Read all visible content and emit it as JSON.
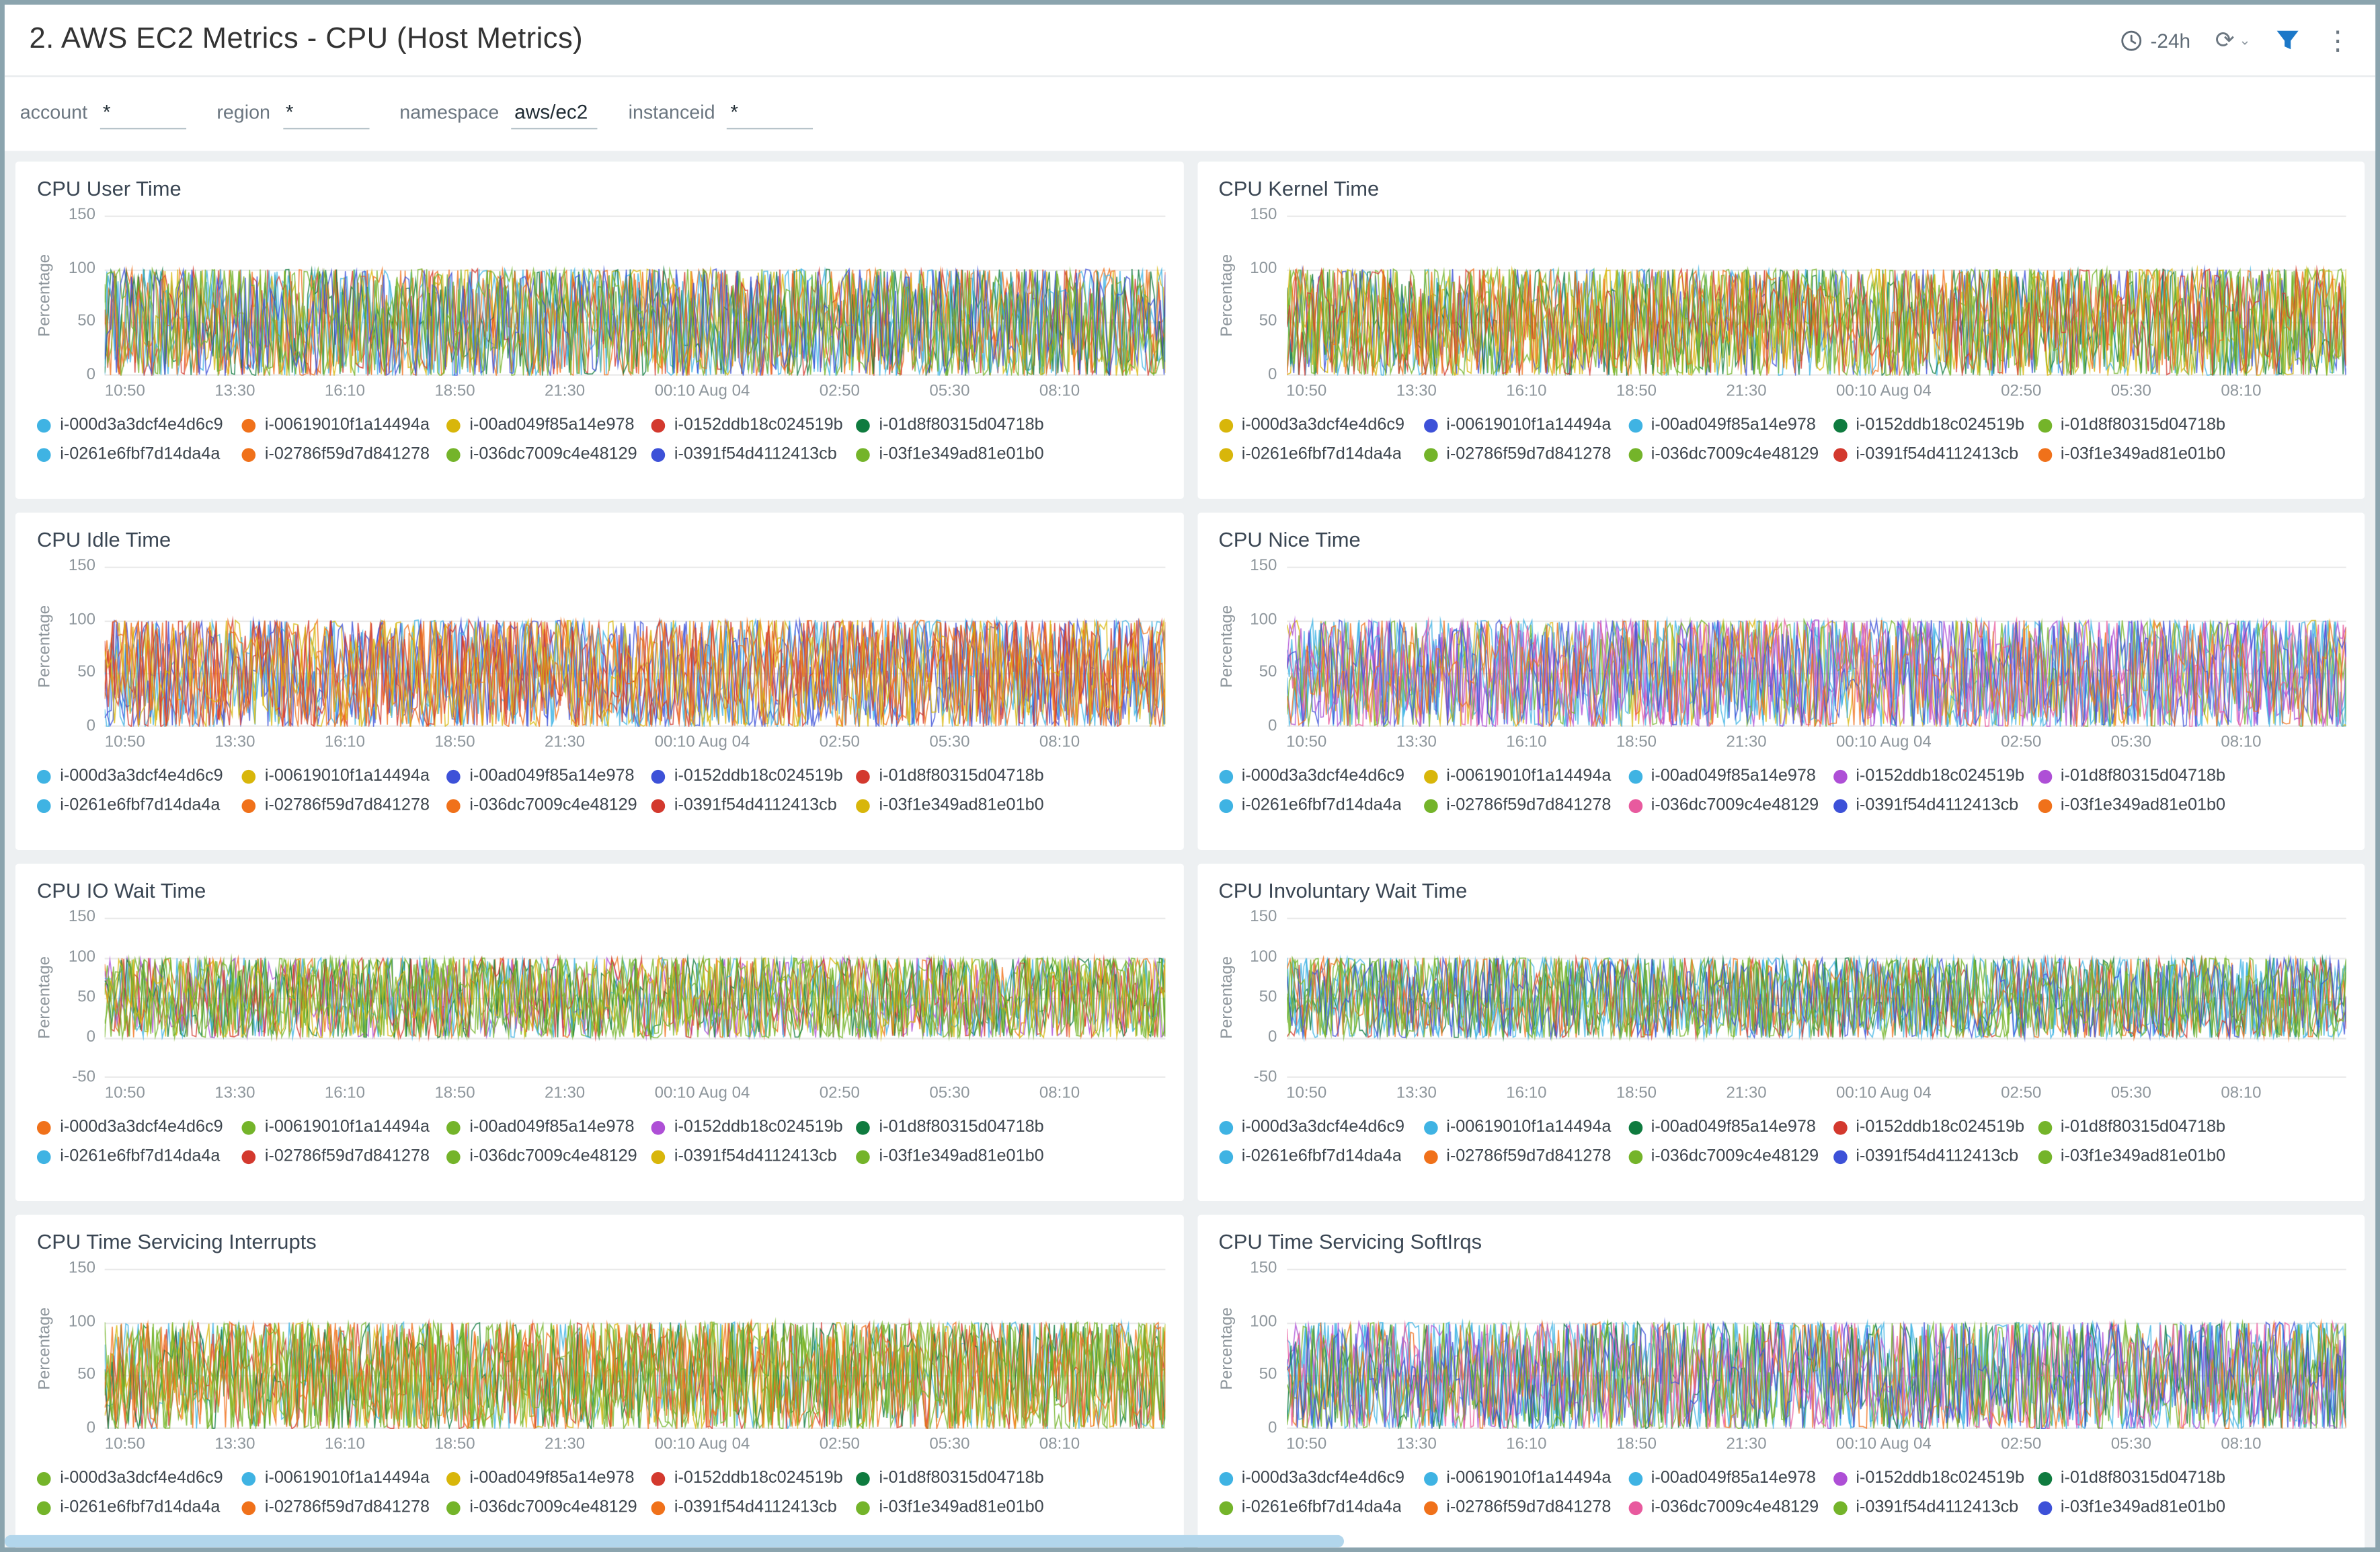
{
  "header": {
    "title": "2. AWS EC2 Metrics - CPU (Host Metrics)",
    "time_range": "-24h",
    "refresh_glyph": "⟳",
    "chevron_glyph": "⌄",
    "kebab_glyph": "⋮",
    "icons": [
      "clock-icon",
      "refresh-icon",
      "chevron-down-icon",
      "filter-icon",
      "kebab-menu-icon"
    ],
    "filter_icon_color": "#1c78c8"
  },
  "filters": [
    {
      "label": "account",
      "value": "*"
    },
    {
      "label": "region",
      "value": "*"
    },
    {
      "label": "namespace",
      "value": "aws/ec2"
    },
    {
      "label": "instanceid",
      "value": "*"
    }
  ],
  "instances": [
    "i-000d3a3dcf4e4d6c9",
    "i-00619010f1a14494a",
    "i-00ad049f85a14e978",
    "i-0152ddb18c024519b",
    "i-01d8f80315d04718b",
    "i-0261e6fbf7d14da4a",
    "i-02786f59d7d841278",
    "i-036dc7009c4e48129",
    "i-0391f54d4112413cb",
    "i-03f1e349ad81e01b0"
  ],
  "x_ticks": [
    "10:50",
    "13:30",
    "16:10",
    "18:50",
    "21:30",
    "00:10 Aug 04",
    "02:50",
    "05:30",
    "08:10"
  ],
  "chart_note": "Each panel is a dense multi-series line chart; all 10 instance series oscillate rapidly between 0 and 100 percent across the full -24h window, values unreadable individually.",
  "panels": [
    {
      "title": "CPU User Time",
      "ylabel": "Percentage",
      "type": "line",
      "y_min": 0,
      "y_max": 150,
      "y_ticks": [
        150,
        100,
        50,
        0
      ],
      "colors": [
        "#3fb3e3",
        "#f0711a",
        "#d8b60a",
        "#d3392e",
        "#0f7b3f",
        "#3fb3e3",
        "#f0711a",
        "#74b42a",
        "#3d51d8",
        "#74b42a"
      ]
    },
    {
      "title": "CPU Kernel Time",
      "ylabel": "Percentage",
      "type": "line",
      "y_min": 0,
      "y_max": 150,
      "y_ticks": [
        150,
        100,
        50,
        0
      ],
      "colors": [
        "#d8b60a",
        "#3d51d8",
        "#3fb3e3",
        "#0f7b3f",
        "#74b42a",
        "#d8b60a",
        "#74b42a",
        "#74b42a",
        "#d3392e",
        "#f0711a"
      ]
    },
    {
      "title": "CPU Idle Time",
      "ylabel": "Percentage",
      "type": "line",
      "y_min": 0,
      "y_max": 150,
      "y_ticks": [
        150,
        100,
        50,
        0
      ],
      "colors": [
        "#3fb3e3",
        "#d8b60a",
        "#3d51d8",
        "#3d51d8",
        "#d3392e",
        "#3fb3e3",
        "#f0711a",
        "#f0711a",
        "#d3392e",
        "#d8b60a"
      ]
    },
    {
      "title": "CPU Nice Time",
      "ylabel": "Percentage",
      "type": "line",
      "y_min": 0,
      "y_max": 150,
      "y_ticks": [
        150,
        100,
        50,
        0
      ],
      "colors": [
        "#3fb3e3",
        "#d8b60a",
        "#3fb3e3",
        "#ae4fd6",
        "#ae4fd6",
        "#3fb3e3",
        "#74b42a",
        "#e85a9e",
        "#3d51d8",
        "#f0711a"
      ]
    },
    {
      "title": "CPU IO Wait Time",
      "ylabel": "Percentage",
      "type": "line",
      "y_min": -50,
      "y_max": 150,
      "y_ticks": [
        150,
        100,
        50,
        0,
        -50
      ],
      "colors": [
        "#f0711a",
        "#74b42a",
        "#74b42a",
        "#ae4fd6",
        "#0f7b3f",
        "#3fb3e3",
        "#d3392e",
        "#74b42a",
        "#d8b60a",
        "#74b42a"
      ]
    },
    {
      "title": "CPU Involuntary Wait Time",
      "ylabel": "Percentage",
      "type": "line",
      "y_min": -50,
      "y_max": 150,
      "y_ticks": [
        150,
        100,
        50,
        0,
        -50
      ],
      "colors": [
        "#3fb3e3",
        "#3fb3e3",
        "#0f7b3f",
        "#d3392e",
        "#74b42a",
        "#3fb3e3",
        "#f0711a",
        "#74b42a",
        "#3d51d8",
        "#74b42a"
      ]
    },
    {
      "title": "CPU Time Servicing Interrupts",
      "ylabel": "Percentage",
      "type": "line",
      "y_min": 0,
      "y_max": 150,
      "y_ticks": [
        150,
        100,
        50,
        0
      ],
      "colors": [
        "#74b42a",
        "#3fb3e3",
        "#d8b60a",
        "#d3392e",
        "#0f7b3f",
        "#74b42a",
        "#f0711a",
        "#74b42a",
        "#f0711a",
        "#74b42a"
      ]
    },
    {
      "title": "CPU Time Servicing SoftIrqs",
      "ylabel": "Percentage",
      "type": "line",
      "y_min": 0,
      "y_max": 150,
      "y_ticks": [
        150,
        100,
        50,
        0
      ],
      "colors": [
        "#3fb3e3",
        "#3fb3e3",
        "#3fb3e3",
        "#ae4fd6",
        "#0f7b3f",
        "#74b42a",
        "#f0711a",
        "#e85a9e",
        "#74b42a",
        "#3d51d8"
      ]
    }
  ]
}
